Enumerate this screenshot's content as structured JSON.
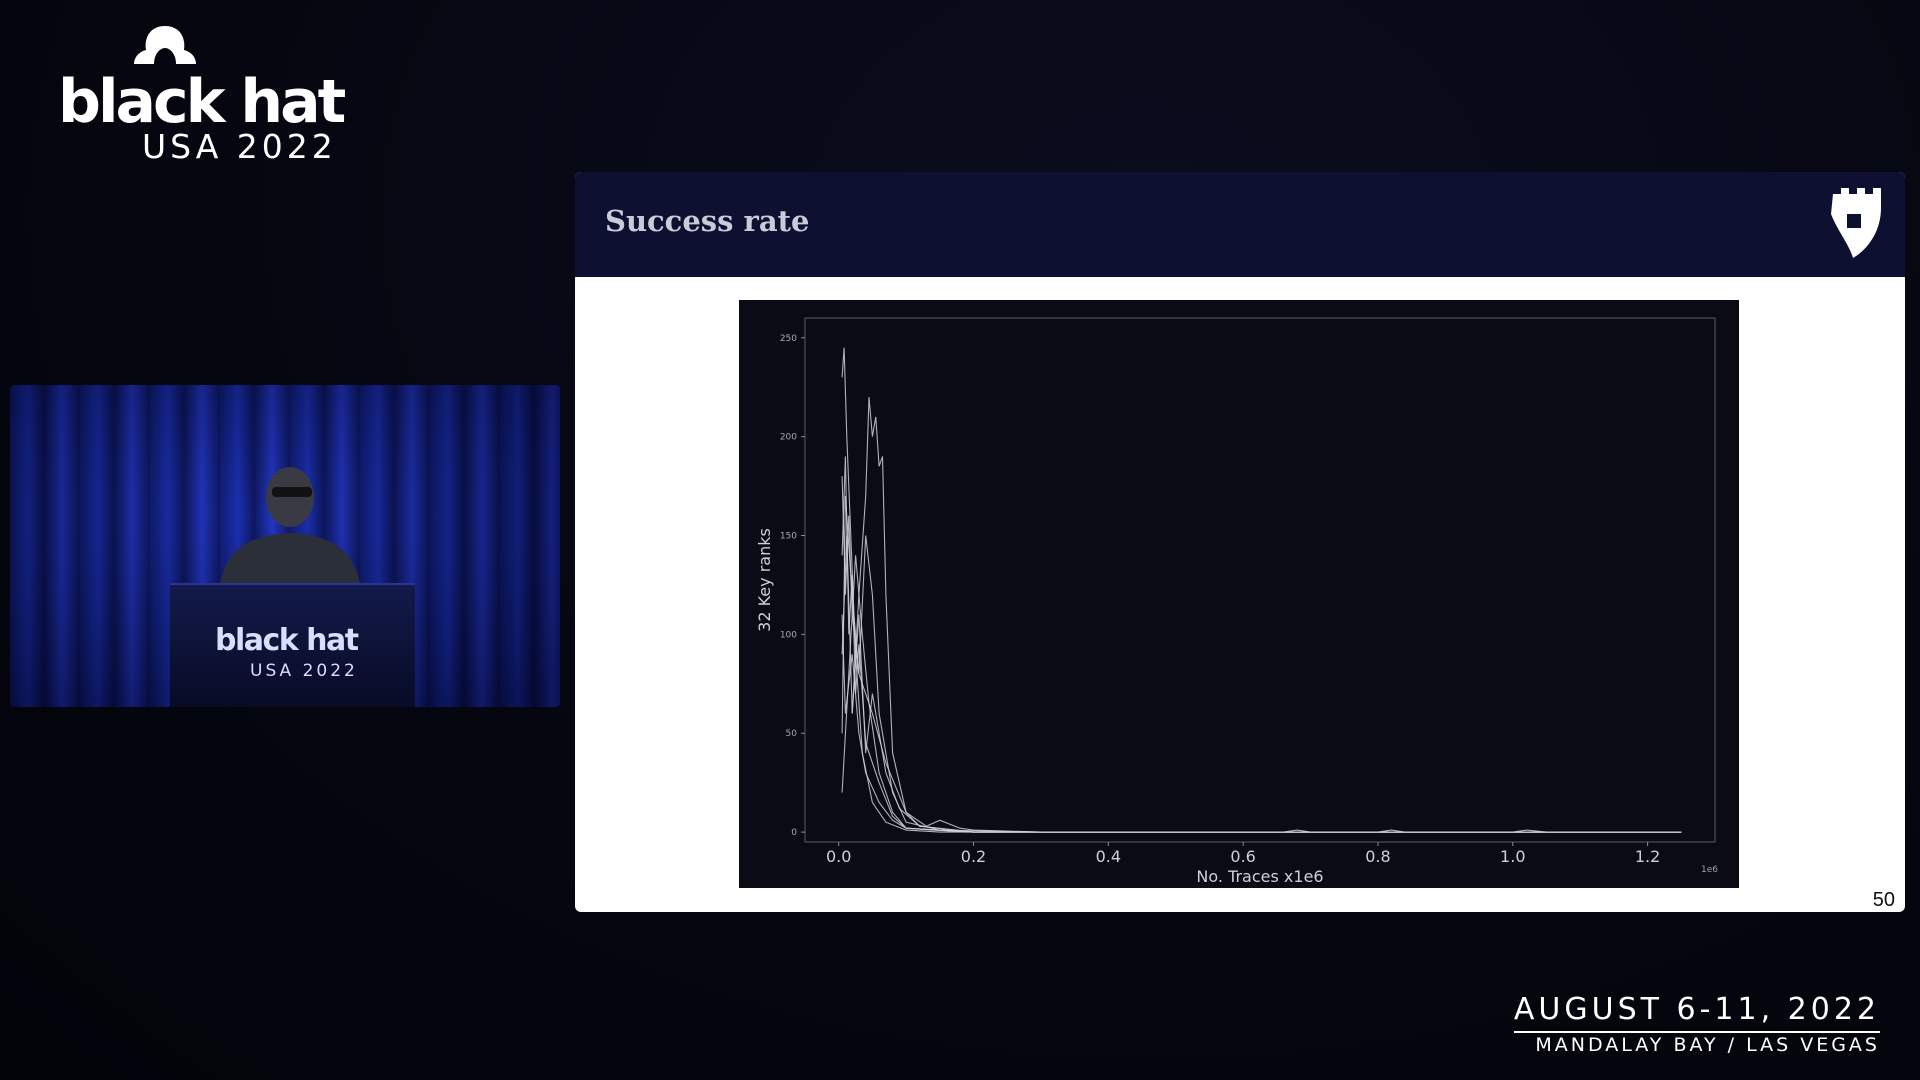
{
  "event": {
    "logo_word": "black hat",
    "logo_sub": "USA 2022",
    "dates": "AUGUST 6-11, 2022",
    "venue": "MANDALAY BAY / LAS VEGAS"
  },
  "speaker_feed": {
    "podium_word": "black hat",
    "podium_sub": "USA 2022"
  },
  "slide": {
    "title": "Success rate",
    "page_number": "50"
  },
  "colors": {
    "header_bg": "#0d1030",
    "plot_bg": "#0a0b14",
    "trace": "#cfcfd6"
  },
  "chart_data": {
    "type": "line",
    "xlabel": "No. Traces x1e6",
    "ylabel": "32 Key ranks",
    "x_offset_label": "1e6",
    "xlim": [
      -0.05,
      1.3
    ],
    "ylim": [
      -5,
      260
    ],
    "x_ticks": [
      0.0,
      0.2,
      0.4,
      0.6,
      0.8,
      1.0,
      1.2
    ],
    "x_tick_labels": [
      "0.0",
      "0.2",
      "0.4",
      "0.6",
      "0.8",
      "1.0",
      "1.2"
    ],
    "y_ticks": [
      0,
      50,
      100,
      150,
      200,
      250
    ],
    "y_tick_labels": [
      "0",
      "50",
      "100",
      "150",
      "200",
      "250"
    ],
    "grid": false,
    "series": [
      {
        "x": [
          0.005,
          0.008,
          0.012,
          0.018,
          0.025,
          0.035,
          0.05,
          0.07,
          0.1,
          0.15,
          0.3,
          0.6,
          0.9,
          1.25
        ],
        "y": [
          230,
          245,
          200,
          150,
          90,
          40,
          15,
          5,
          1,
          0,
          0,
          0,
          0,
          0
        ]
      },
      {
        "x": [
          0.005,
          0.01,
          0.015,
          0.02,
          0.03,
          0.04,
          0.05,
          0.06,
          0.08,
          0.1,
          0.15,
          0.3,
          0.6,
          1.25
        ],
        "y": [
          180,
          120,
          160,
          110,
          80,
          150,
          120,
          60,
          20,
          5,
          1,
          0,
          0,
          0
        ]
      },
      {
        "x": [
          0.02,
          0.03,
          0.04,
          0.045,
          0.05,
          0.055,
          0.06,
          0.065,
          0.07,
          0.08,
          0.1,
          0.12,
          0.2,
          0.5,
          1.25
        ],
        "y": [
          60,
          120,
          170,
          220,
          200,
          210,
          185,
          190,
          120,
          40,
          10,
          3,
          0,
          0,
          0
        ]
      },
      {
        "x": [
          0.005,
          0.01,
          0.015,
          0.02,
          0.025,
          0.03,
          0.04,
          0.06,
          0.08,
          0.1,
          0.2,
          0.5,
          1.25
        ],
        "y": [
          140,
          190,
          100,
          130,
          70,
          95,
          45,
          25,
          8,
          2,
          0,
          0,
          0
        ]
      },
      {
        "x": [
          0.005,
          0.012,
          0.02,
          0.03,
          0.04,
          0.05,
          0.07,
          0.09,
          0.12,
          0.2,
          0.6,
          1.25
        ],
        "y": [
          90,
          150,
          60,
          110,
          40,
          70,
          30,
          12,
          3,
          0,
          0,
          0
        ]
      },
      {
        "x": [
          0.005,
          0.01,
          0.02,
          0.03,
          0.05,
          0.07,
          0.1,
          0.13,
          0.15,
          0.18,
          0.2,
          0.3,
          0.7,
          1.25
        ],
        "y": [
          50,
          170,
          120,
          80,
          60,
          35,
          10,
          3,
          6,
          2,
          1,
          0,
          0,
          0
        ]
      },
      {
        "x": [
          0.005,
          0.015,
          0.025,
          0.035,
          0.045,
          0.06,
          0.08,
          0.1,
          0.2,
          0.5,
          1.25
        ],
        "y": [
          20,
          80,
          140,
          100,
          65,
          30,
          10,
          2,
          0,
          0,
          0
        ]
      },
      {
        "x": [
          0.005,
          0.01,
          0.02,
          0.03,
          0.04,
          0.06,
          0.08,
          0.1,
          0.14,
          0.2,
          0.66,
          0.68,
          0.7,
          0.8,
          0.82,
          0.84,
          1.0,
          1.02,
          1.05,
          1.25
        ],
        "y": [
          110,
          60,
          90,
          50,
          30,
          15,
          6,
          2,
          1,
          0,
          0,
          1,
          0,
          0,
          1,
          0,
          0,
          1,
          0,
          0
        ]
      }
    ]
  }
}
